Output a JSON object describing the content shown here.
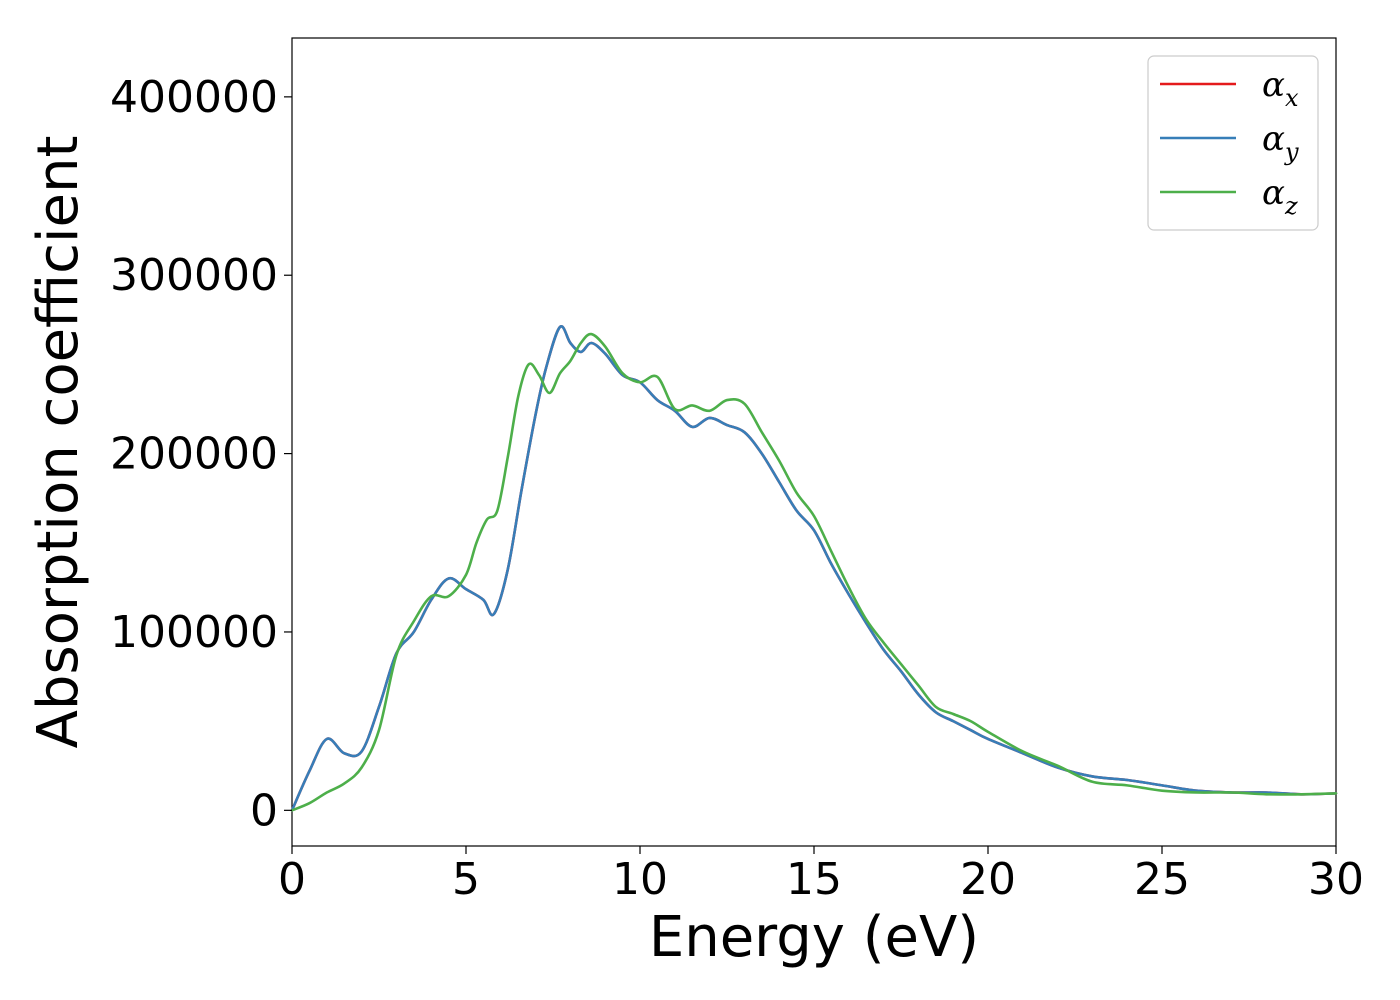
{
  "chart_data": {
    "type": "line",
    "title": "",
    "xlabel": "Energy (eV)",
    "ylabel": "Absorption coefficient",
    "xlim": [
      0,
      30
    ],
    "ylim": [
      -20000,
      433000
    ],
    "xticks": [
      0,
      5,
      10,
      15,
      20,
      25,
      30
    ],
    "yticks": [
      0,
      100000,
      200000,
      300000,
      400000
    ],
    "grid": false,
    "legend_position": "top-right",
    "series": [
      {
        "name": "α",
        "subscript": "x",
        "color": "#e41a1c",
        "x": [
          0,
          0.5,
          1.0,
          1.5,
          2.0,
          2.5,
          3.0,
          3.5,
          4.0,
          4.5,
          5.0,
          5.5,
          5.8,
          6.2,
          6.6,
          7.0,
          7.3,
          7.7,
          8.0,
          8.3,
          8.6,
          9.0,
          9.5,
          10.0,
          10.5,
          11.0,
          11.5,
          12.0,
          12.5,
          13.0,
          13.5,
          14.0,
          14.5,
          15.0,
          15.5,
          16.0,
          16.5,
          17.0,
          17.5,
          18.0,
          18.5,
          19.0,
          19.5,
          20.0,
          21.0,
          22.0,
          23.0,
          24.0,
          25.0,
          26.0,
          27.0,
          28.0,
          29.0,
          30.0
        ],
        "y": [
          0,
          22000,
          40000,
          32000,
          33000,
          58000,
          88000,
          100000,
          118000,
          130000,
          124000,
          118000,
          110000,
          135000,
          180000,
          222000,
          248000,
          271000,
          262000,
          257000,
          262000,
          256000,
          244000,
          240000,
          230000,
          224000,
          215000,
          220000,
          216000,
          212000,
          200000,
          184000,
          168000,
          157000,
          138000,
          121000,
          105000,
          90000,
          78000,
          65000,
          55000,
          50000,
          45000,
          40000,
          32000,
          24000,
          19000,
          17000,
          14000,
          11000,
          10000,
          10000,
          9000,
          9500
        ]
      },
      {
        "name": "α",
        "subscript": "y",
        "color": "#377eb8",
        "x": [
          0,
          0.5,
          1.0,
          1.5,
          2.0,
          2.5,
          3.0,
          3.5,
          4.0,
          4.5,
          5.0,
          5.5,
          5.8,
          6.2,
          6.6,
          7.0,
          7.3,
          7.7,
          8.0,
          8.3,
          8.6,
          9.0,
          9.5,
          10.0,
          10.5,
          11.0,
          11.5,
          12.0,
          12.5,
          13.0,
          13.5,
          14.0,
          14.5,
          15.0,
          15.5,
          16.0,
          16.5,
          17.0,
          17.5,
          18.0,
          18.5,
          19.0,
          19.5,
          20.0,
          21.0,
          22.0,
          23.0,
          24.0,
          25.0,
          26.0,
          27.0,
          28.0,
          29.0,
          30.0
        ],
        "y": [
          0,
          22000,
          40000,
          32000,
          33000,
          58000,
          88000,
          100000,
          118000,
          130000,
          124000,
          118000,
          110000,
          135000,
          180000,
          222000,
          248000,
          271000,
          262000,
          257000,
          262000,
          256000,
          244000,
          240000,
          230000,
          224000,
          215000,
          220000,
          216000,
          212000,
          200000,
          184000,
          168000,
          157000,
          138000,
          121000,
          105000,
          90000,
          78000,
          65000,
          55000,
          50000,
          45000,
          40000,
          32000,
          24000,
          19000,
          17000,
          14000,
          11000,
          10000,
          10000,
          9000,
          9500
        ]
      },
      {
        "name": "α",
        "subscript": "z",
        "color": "#4daf4a",
        "x": [
          0,
          0.5,
          1.0,
          1.5,
          2.0,
          2.5,
          3.0,
          3.5,
          4.0,
          4.5,
          5.0,
          5.3,
          5.6,
          5.9,
          6.2,
          6.5,
          6.8,
          7.1,
          7.4,
          7.7,
          8.0,
          8.3,
          8.6,
          9.0,
          9.5,
          10.0,
          10.5,
          11.0,
          11.5,
          12.0,
          12.5,
          13.0,
          13.5,
          14.0,
          14.5,
          15.0,
          15.5,
          16.0,
          16.5,
          17.0,
          17.5,
          18.0,
          18.5,
          19.0,
          19.5,
          20.0,
          21.0,
          22.0,
          23.0,
          24.0,
          25.0,
          26.0,
          27.0,
          28.0,
          29.0,
          30.0
        ],
        "y": [
          0,
          4000,
          10000,
          15000,
          24000,
          45000,
          87000,
          106000,
          120000,
          120000,
          132000,
          150000,
          163000,
          168000,
          198000,
          232000,
          250000,
          244000,
          234000,
          245000,
          252000,
          262000,
          267000,
          260000,
          245000,
          240000,
          243000,
          225000,
          227000,
          224000,
          230000,
          228000,
          212000,
          196000,
          178000,
          165000,
          145000,
          125000,
          107000,
          94000,
          82000,
          70000,
          58000,
          54000,
          50000,
          44000,
          33000,
          25000,
          16000,
          14000,
          11000,
          10000,
          10000,
          9000,
          9000,
          9500
        ]
      }
    ]
  }
}
